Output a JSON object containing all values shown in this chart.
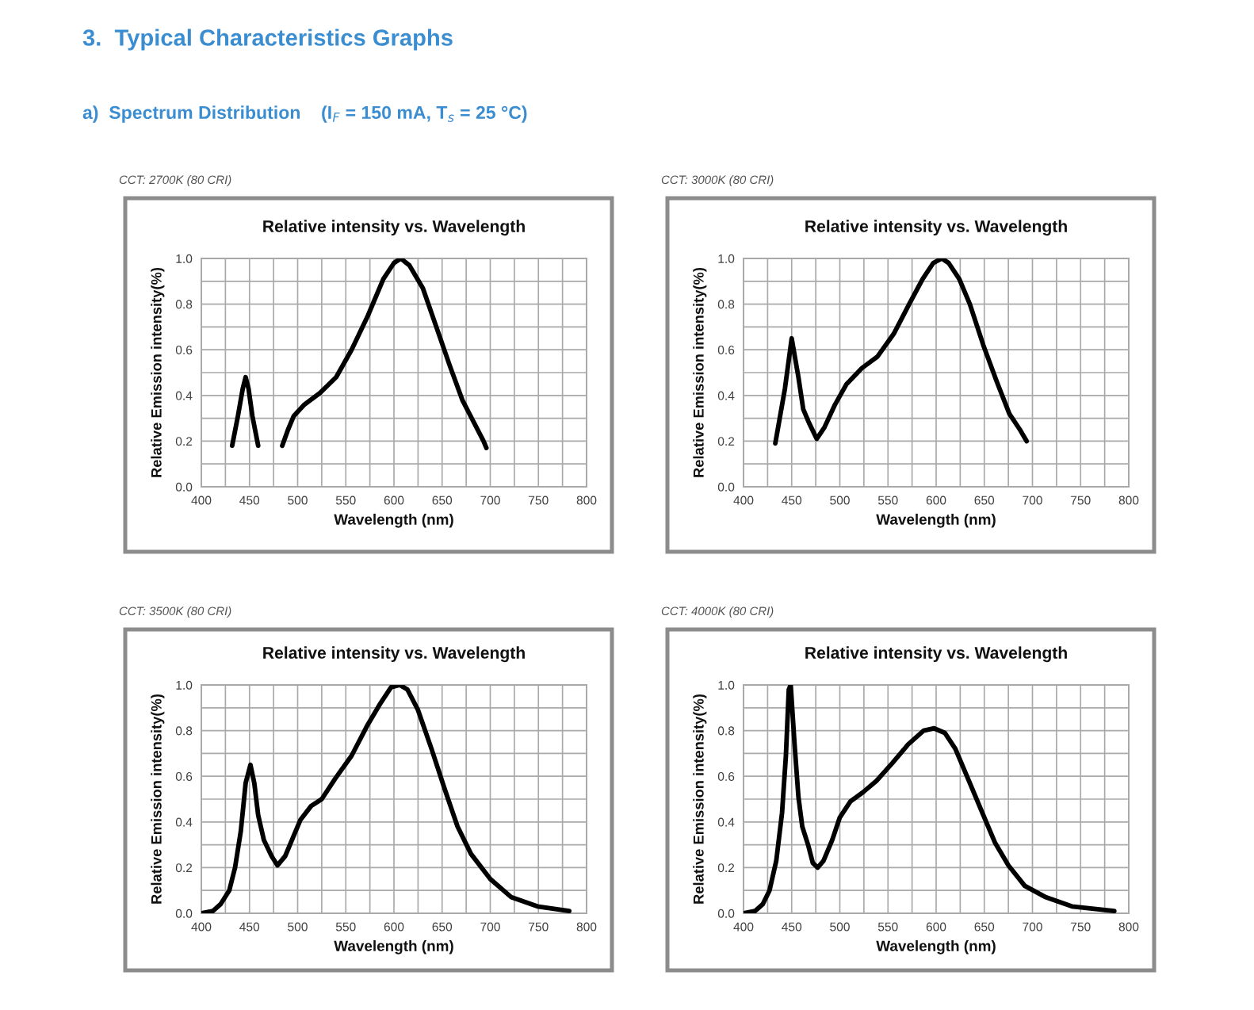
{
  "chart_data": [
    {
      "type": "line",
      "title": "Relative intensity vs. Wavelength",
      "subtitle": "CCT: 2700K (80 CRI)",
      "xlabel": "Wavelength (nm)",
      "ylabel": "Relative Emission intensity(%)",
      "annotations": [
        "3.  Typical Characteristics Graphs",
        "a)  Spectrum Distribution    (I$_{F}$ = 150 mA, T$_{s}$ = 25 °C)"
      ],
      "x": [
        432,
        438,
        443,
        446,
        449,
        453,
        459,
        471,
        484,
        490,
        496,
        507,
        523,
        540,
        556,
        573,
        589,
        600,
        607,
        616,
        630,
        644,
        658,
        671,
        682,
        693,
        696
      ],
      "values": [
        0.18,
        0.31,
        0.43,
        0.48,
        0.43,
        0.31,
        0.18,
        null,
        0.18,
        0.25,
        0.31,
        0.36,
        0.41,
        0.48,
        0.6,
        0.75,
        0.91,
        0.98,
        1.0,
        0.97,
        0.87,
        0.7,
        0.53,
        0.38,
        0.29,
        0.2,
        0.17
      ],
      "color": "#000000",
      "grid": true,
      "xlim": [
        400,
        800
      ],
      "ylim": [
        0,
        1
      ],
      "xticks": [
        400,
        {
          "value": 425,
          "label": null
        },
        450,
        {
          "value": 475,
          "label": null
        },
        500,
        {
          "value": 525,
          "label": null
        },
        550,
        {
          "value": 575,
          "label": null
        },
        600,
        {
          "value": 625,
          "label": null
        },
        650,
        {
          "value": 675,
          "label": null
        },
        700,
        {
          "value": 725,
          "label": null
        },
        750,
        {
          "value": 775,
          "label": null
        },
        800
      ],
      "yticks": [
        {
          "value": 0,
          "label": "0.0"
        },
        {
          "value": 0.1,
          "label": null
        },
        {
          "value": 0.2,
          "label": "0.2"
        },
        {
          "value": 0.3,
          "label": null
        },
        {
          "value": 0.4,
          "label": "0.4"
        },
        {
          "value": 0.5,
          "label": null
        },
        {
          "value": 0.6,
          "label": "0.6"
        },
        {
          "value": 0.7,
          "label": null
        },
        {
          "value": 0.8,
          "label": "0.8"
        },
        {
          "value": 0.9,
          "label": null
        },
        {
          "value": 1,
          "label": "1.0"
        }
      ]
    },
    {
      "type": "line",
      "title": "Relative intensity vs. Wavelength",
      "subtitle": "CCT: 3000K (80 CRI)",
      "xlabel": "Wavelength (nm)",
      "ylabel": "Relative Emission intensity(%)",
      "x": [
        433,
        443,
        450,
        457,
        462,
        468,
        476,
        484,
        495,
        507,
        523,
        539,
        556,
        572,
        586,
        597,
        606,
        613,
        624,
        635,
        649,
        663,
        676,
        687,
        694
      ],
      "values": [
        0.19,
        0.43,
        0.65,
        0.48,
        0.34,
        0.28,
        0.21,
        0.26,
        0.36,
        0.45,
        0.52,
        0.57,
        0.67,
        0.8,
        0.91,
        0.98,
        1.0,
        0.98,
        0.91,
        0.8,
        0.62,
        0.46,
        0.32,
        0.25,
        0.2
      ],
      "color": "#000000",
      "grid": true,
      "xlim": [
        400,
        800
      ],
      "ylim": [
        0,
        1
      ],
      "xticks": [
        400,
        {
          "value": 425,
          "label": null
        },
        450,
        {
          "value": 475,
          "label": null
        },
        500,
        {
          "value": 525,
          "label": null
        },
        550,
        {
          "value": 575,
          "label": null
        },
        600,
        {
          "value": 625,
          "label": null
        },
        650,
        {
          "value": 675,
          "label": null
        },
        700,
        {
          "value": 725,
          "label": null
        },
        750,
        {
          "value": 775,
          "label": null
        },
        800
      ],
      "yticks": [
        {
          "value": 0,
          "label": "0.0"
        },
        {
          "value": 0.1,
          "label": null
        },
        {
          "value": 0.2,
          "label": "0.2"
        },
        {
          "value": 0.3,
          "label": null
        },
        {
          "value": 0.4,
          "label": "0.4"
        },
        {
          "value": 0.5,
          "label": null
        },
        {
          "value": 0.6,
          "label": "0.6"
        },
        {
          "value": 0.7,
          "label": null
        },
        {
          "value": 0.8,
          "label": "0.8"
        },
        {
          "value": 0.9,
          "label": null
        },
        {
          "value": 1,
          "label": "1.0"
        }
      ]
    },
    {
      "type": "line",
      "title": "Relative intensity vs. Wavelength",
      "subtitle": "CCT: 3500K (80 CRI)",
      "xlabel": "Wavelength (nm)",
      "ylabel": "Relative Emission intensity(%)",
      "x": [
        400,
        412,
        420,
        429,
        435,
        441,
        446,
        451,
        455,
        459,
        465,
        473,
        479,
        487,
        495,
        503,
        514,
        525,
        539,
        556,
        572,
        586,
        597,
        606,
        614,
        625,
        639,
        653,
        666,
        680,
        700,
        722,
        749,
        782
      ],
      "values": [
        0.0,
        0.01,
        0.04,
        0.1,
        0.2,
        0.36,
        0.57,
        0.65,
        0.57,
        0.43,
        0.32,
        0.25,
        0.21,
        0.25,
        0.33,
        0.41,
        0.47,
        0.5,
        0.59,
        0.69,
        0.82,
        0.92,
        0.99,
        1.0,
        0.98,
        0.89,
        0.72,
        0.54,
        0.38,
        0.26,
        0.15,
        0.07,
        0.03,
        0.01
      ],
      "color": "#000000",
      "grid": true,
      "xlim": [
        400,
        800
      ],
      "ylim": [
        0,
        1
      ],
      "xticks": [
        400,
        {
          "value": 425,
          "label": null
        },
        450,
        {
          "value": 475,
          "label": null
        },
        500,
        {
          "value": 525,
          "label": null
        },
        550,
        {
          "value": 575,
          "label": null
        },
        600,
        {
          "value": 625,
          "label": null
        },
        650,
        {
          "value": 675,
          "label": null
        },
        700,
        {
          "value": 725,
          "label": null
        },
        750,
        {
          "value": 775,
          "label": null
        },
        800
      ],
      "yticks": [
        {
          "value": 0,
          "label": "0.0"
        },
        {
          "value": 0.1,
          "label": null
        },
        {
          "value": 0.2,
          "label": "0.2"
        },
        {
          "value": 0.3,
          "label": null
        },
        {
          "value": 0.4,
          "label": "0.4"
        },
        {
          "value": 0.5,
          "label": null
        },
        {
          "value": 0.6,
          "label": "0.6"
        },
        {
          "value": 0.7,
          "label": null
        },
        {
          "value": 0.8,
          "label": "0.8"
        },
        {
          "value": 0.9,
          "label": null
        },
        {
          "value": 1,
          "label": "1.0"
        }
      ]
    },
    {
      "type": "line",
      "title": "Relative intensity vs. Wavelength",
      "subtitle": "CCT: 4000K (80 CRI)",
      "xlabel": "Wavelength (nm)",
      "ylabel": "Relative Emission intensity(%)",
      "x": [
        400,
        412,
        420,
        427,
        434,
        440,
        444,
        447,
        449,
        453,
        457,
        461,
        467,
        472,
        477,
        483,
        492,
        500,
        511,
        524,
        538,
        555,
        571,
        587,
        598,
        609,
        620,
        634,
        648,
        661,
        675,
        692,
        714,
        741,
        785
      ],
      "values": [
        0.0,
        0.01,
        0.04,
        0.1,
        0.23,
        0.44,
        0.69,
        0.98,
        1.0,
        0.74,
        0.51,
        0.38,
        0.3,
        0.22,
        0.2,
        0.23,
        0.32,
        0.42,
        0.49,
        0.53,
        0.58,
        0.66,
        0.74,
        0.8,
        0.81,
        0.79,
        0.72,
        0.58,
        0.44,
        0.31,
        0.21,
        0.12,
        0.07,
        0.03,
        0.01
      ],
      "color": "#000000",
      "grid": true,
      "xlim": [
        400,
        800
      ],
      "ylim": [
        0,
        1
      ],
      "xticks": [
        400,
        {
          "value": 425,
          "label": null
        },
        450,
        {
          "value": 475,
          "label": null
        },
        500,
        {
          "value": 525,
          "label": null
        },
        550,
        {
          "value": 575,
          "label": null
        },
        600,
        {
          "value": 625,
          "label": null
        },
        650,
        {
          "value": 675,
          "label": null
        },
        700,
        {
          "value": 725,
          "label": null
        },
        750,
        {
          "value": 775,
          "label": null
        },
        800
      ],
      "yticks": [
        {
          "value": 0,
          "label": "0.0"
        },
        {
          "value": 0.1,
          "label": null
        },
        {
          "value": 0.2,
          "label": "0.2"
        },
        {
          "value": 0.3,
          "label": null
        },
        {
          "value": 0.4,
          "label": "0.4"
        },
        {
          "value": 0.5,
          "label": null
        },
        {
          "value": 0.6,
          "label": "0.6"
        },
        {
          "value": 0.7,
          "label": null
        },
        {
          "value": 0.8,
          "label": "0.8"
        },
        {
          "value": 0.9,
          "label": null
        },
        {
          "value": 1,
          "label": "1.0"
        }
      ]
    }
  ]
}
